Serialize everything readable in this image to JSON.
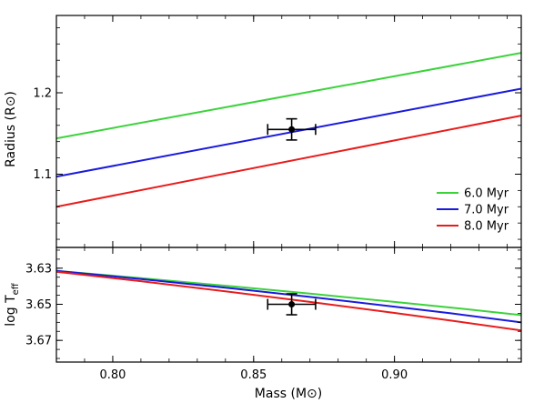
{
  "chart_data": [
    {
      "type": "line",
      "panel": "top",
      "xlabel": "Mass (M⊙)",
      "ylabel": "Radius (R⊙)",
      "xlim": [
        0.78,
        0.945
      ],
      "ylim": [
        1.01,
        1.295
      ],
      "yticks": [
        1.1,
        1.2
      ],
      "ytick_labels": [
        "1.1",
        "1.2"
      ],
      "series": [
        {
          "name": "6.0 Myr",
          "color": "#3cd23c",
          "x": [
            0.78,
            0.945
          ],
          "y": [
            1.144,
            1.249
          ]
        },
        {
          "name": "7.0 Myr",
          "color": "#1a1adc",
          "x": [
            0.78,
            0.945
          ],
          "y": [
            1.097,
            1.205
          ]
        },
        {
          "name": "8.0 Myr",
          "color": "#e81c1c",
          "x": [
            0.78,
            0.945
          ],
          "y": [
            1.06,
            1.172
          ]
        }
      ],
      "points": [
        {
          "x": 0.8635,
          "y": 1.155,
          "xerr": 0.0085,
          "yerr": 0.013
        }
      ],
      "legend": {
        "position": "bottom-right",
        "entries": [
          "6.0 Myr",
          "7.0 Myr",
          "8.0 Myr"
        ]
      }
    },
    {
      "type": "line",
      "panel": "bottom",
      "xlabel": "Mass (M⊙)",
      "ylabel_main": "log T",
      "ylabel_sub": "eff",
      "xlim": [
        0.78,
        0.945
      ],
      "ylim": [
        3.682,
        3.6185
      ],
      "inverted_y": true,
      "xticks": [
        0.8,
        0.85,
        0.9
      ],
      "xtick_labels": [
        "0.80",
        "0.85",
        "0.90"
      ],
      "yticks": [
        3.63,
        3.65,
        3.67
      ],
      "ytick_labels": [
        "3.63",
        "3.65",
        "3.67"
      ],
      "series": [
        {
          "name": "6.0 Myr",
          "color": "#3cd23c",
          "x": [
            0.78,
            0.81,
            0.84,
            0.87,
            0.9,
            0.92,
            0.945
          ],
          "y": [
            3.6315,
            3.6355,
            3.6397,
            3.6441,
            3.6487,
            3.6518,
            3.656
          ]
        },
        {
          "name": "7.0 Myr",
          "color": "#1a1adc",
          "x": [
            0.78,
            0.81,
            0.84,
            0.87,
            0.9,
            0.92,
            0.945
          ],
          "y": [
            3.6315,
            3.636,
            3.6408,
            3.6459,
            3.6513,
            3.655,
            3.66
          ]
        },
        {
          "name": "8.0 Myr",
          "color": "#e81c1c",
          "x": [
            0.78,
            0.81,
            0.84,
            0.87,
            0.9,
            0.92,
            0.945
          ],
          "y": [
            3.632,
            3.6372,
            3.6428,
            3.6487,
            3.6548,
            3.659,
            3.6645
          ]
        }
      ],
      "points": [
        {
          "x": 0.8635,
          "y": 3.65,
          "xerr": 0.0085,
          "yerr": 0.0058
        }
      ]
    }
  ]
}
